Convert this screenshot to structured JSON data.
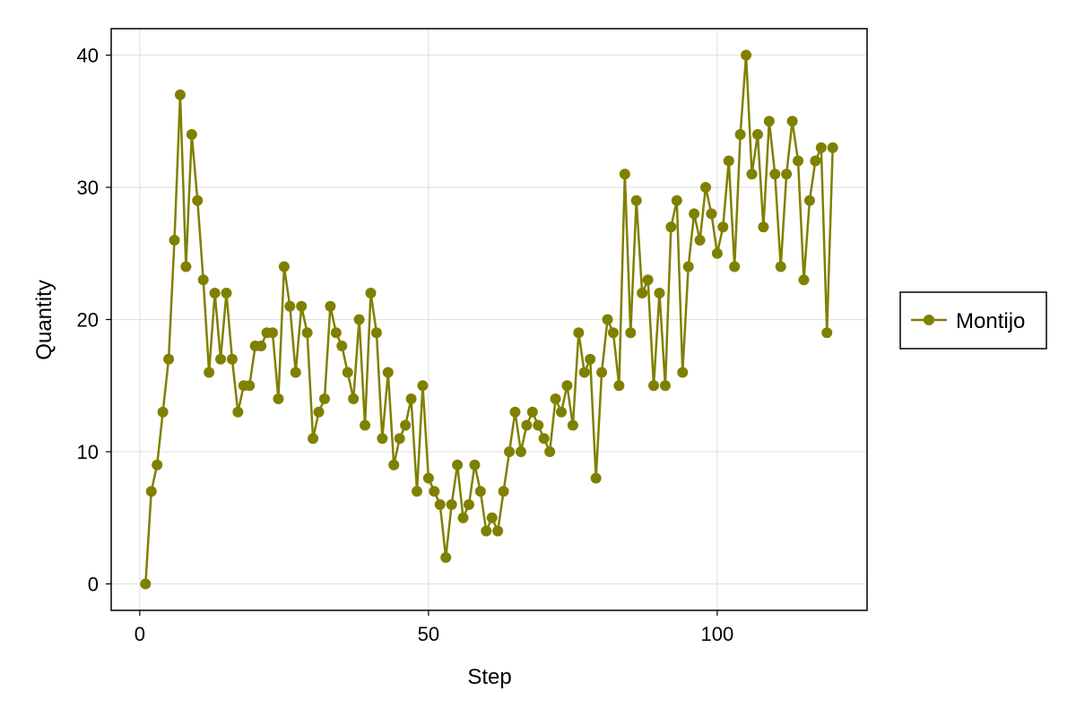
{
  "chart_data": {
    "type": "line",
    "title": "",
    "xlabel": "Step",
    "ylabel": "Quantity",
    "xlim": [
      -4.95,
      125.95
    ],
    "ylim": [
      -2,
      42
    ],
    "xticks": [
      0,
      50,
      100
    ],
    "yticks": [
      0,
      10,
      20,
      30,
      40
    ],
    "grid": true,
    "legend_position": "right",
    "series": [
      {
        "name": "Montijo",
        "color": "#808000",
        "marker": "circle",
        "x": [
          1,
          2,
          3,
          4,
          5,
          6,
          7,
          8,
          9,
          10,
          11,
          12,
          13,
          14,
          15,
          16,
          17,
          18,
          19,
          20,
          21,
          22,
          23,
          24,
          25,
          26,
          27,
          28,
          29,
          30,
          31,
          32,
          33,
          34,
          35,
          36,
          37,
          38,
          39,
          40,
          41,
          42,
          43,
          44,
          45,
          46,
          47,
          48,
          49,
          50,
          51,
          52,
          53,
          54,
          55,
          56,
          57,
          58,
          59,
          60,
          61,
          62,
          63,
          64,
          65,
          66,
          67,
          68,
          69,
          70,
          71,
          72,
          73,
          74,
          75,
          76,
          77,
          78,
          79,
          80,
          81,
          82,
          83,
          84,
          85,
          86,
          87,
          88,
          89,
          90,
          91,
          92,
          93,
          94,
          95,
          96,
          97,
          98,
          99,
          100,
          101,
          102,
          103,
          104,
          105,
          106,
          107,
          108,
          109,
          110,
          111,
          112,
          113,
          114,
          115,
          116,
          117,
          118,
          119,
          120
        ],
        "y": [
          0,
          7,
          9,
          13,
          17,
          26,
          37,
          24,
          34,
          29,
          23,
          16,
          22,
          17,
          22,
          17,
          13,
          15,
          15,
          18,
          18,
          19,
          19,
          14,
          24,
          21,
          16,
          21,
          19,
          11,
          13,
          14,
          21,
          19,
          18,
          16,
          14,
          20,
          12,
          22,
          19,
          11,
          16,
          9,
          11,
          12,
          14,
          7,
          15,
          8,
          7,
          6,
          2,
          6,
          9,
          5,
          6,
          9,
          7,
          4,
          5,
          4,
          7,
          10,
          13,
          10,
          12,
          13,
          12,
          11,
          10,
          14,
          13,
          15,
          12,
          19,
          16,
          17,
          8,
          16,
          20,
          19,
          15,
          31,
          19,
          29,
          22,
          23,
          15,
          22,
          15,
          27,
          29,
          16,
          24,
          28,
          26,
          30,
          28,
          25,
          27,
          32,
          24,
          34,
          40,
          31,
          34,
          27,
          35,
          31,
          24,
          31,
          35,
          32,
          23,
          29,
          32,
          33,
          19,
          33
        ]
      }
    ]
  }
}
